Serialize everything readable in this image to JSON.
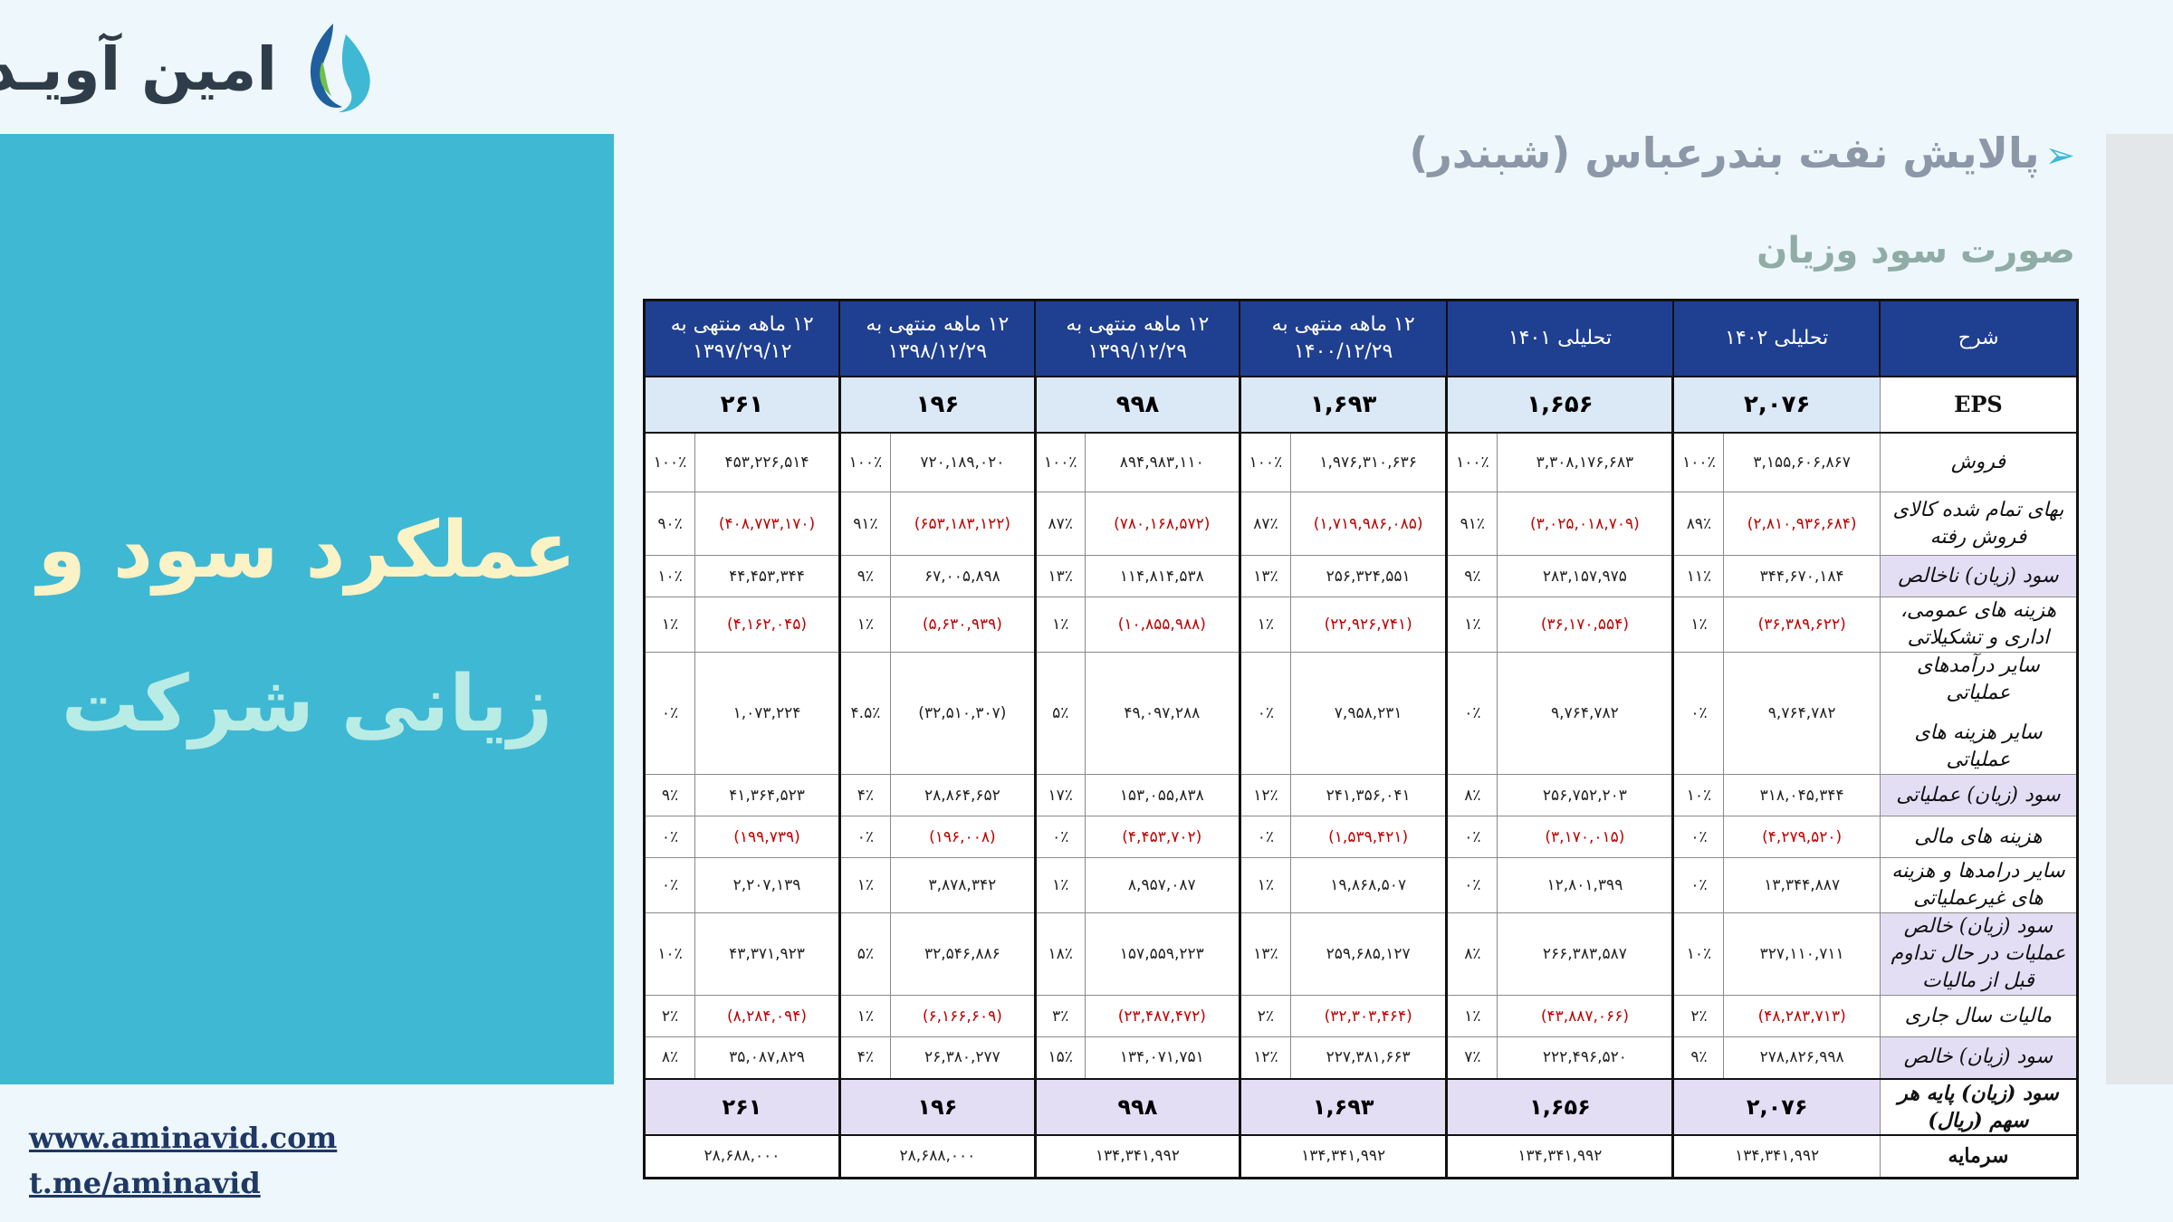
{
  "logo": {
    "text": "امین آویـد",
    "icon": "water-drops-logo-icon"
  },
  "side_panel": {
    "line1": "عملکرد سود و",
    "line2": "زیانی شرکت"
  },
  "links": {
    "website": "www.aminavid.com",
    "telegram": "t.me/aminavid"
  },
  "title": "پالایش نفت بندرعباس (شبندر)",
  "subtitle": "صورت سود وزیان",
  "colors": {
    "header_bg": "#1f3f91",
    "panel_bg": "#3fb8d3",
    "negative": "#c00000",
    "highlight": "#e4def5",
    "eps_bg": "#dbe8f5"
  },
  "table": {
    "headers": {
      "desc": "شرح",
      "c1": "تحلیلی ۱۴۰۲",
      "c2": "تحلیلی ۱۴۰۱",
      "c3": "۱۲ ماهه منتهی به ۱۴۰۰/۱۲/۲۹",
      "c4": "۱۲ ماهه منتهی به ۱۳۹۹/۱۲/۲۹",
      "c5": "۱۲ ماهه منتهی به ۱۳۹۸/۱۲/۲۹",
      "c6": "۱۲ ماهه منتهی به ۱۳۹۷/۲۹/۱۲"
    },
    "eps": {
      "label": "EPS",
      "values": [
        "۲,۰۷۶",
        "۱,۶۵۶",
        "۱,۶۹۳",
        "۹۹۸",
        "۱۹۶",
        "۲۶۱"
      ]
    },
    "rows": [
      {
        "label": "فروش",
        "cells": [
          [
            "۳,۱۵۵,۶۰۶,۸۶۷",
            "۱۰۰٪"
          ],
          [
            "۳,۳۰۸,۱۷۶,۶۸۳",
            "۱۰۰٪"
          ],
          [
            "۱,۹۷۶,۳۱۰,۶۳۶",
            "۱۰۰٪"
          ],
          [
            "۸۹۴,۹۸۳,۱۱۰",
            "۱۰۰٪"
          ],
          [
            "۷۲۰,۱۸۹,۰۲۰",
            "۱۰۰٪"
          ],
          [
            "۴۵۳,۲۲۶,۵۱۴",
            "۱۰۰٪"
          ]
        ],
        "neg": false,
        "hl": false
      },
      {
        "label": "بهای تمام شده کالای فروش رفته",
        "cells": [
          [
            "(۲,۸۱۰,۹۳۶,۶۸۴)",
            "۸۹٪"
          ],
          [
            "(۳,۰۲۵,۰۱۸,۷۰۹)",
            "۹۱٪"
          ],
          [
            "(۱,۷۱۹,۹۸۶,۰۸۵)",
            "۸۷٪"
          ],
          [
            "(۷۸۰,۱۶۸,۵۷۲)",
            "۸۷٪"
          ],
          [
            "(۶۵۳,۱۸۳,۱۲۲)",
            "۹۱٪"
          ],
          [
            "(۴۰۸,۷۷۳,۱۷۰)",
            "۹۰٪"
          ]
        ],
        "neg": true,
        "hl": false
      },
      {
        "label": "سود (زیان) ناخالص",
        "cells": [
          [
            "۳۴۴,۶۷۰,۱۸۴",
            "۱۱٪"
          ],
          [
            "۲۸۳,۱۵۷,۹۷۵",
            "۹٪"
          ],
          [
            "۲۵۶,۳۲۴,۵۵۱",
            "۱۳٪"
          ],
          [
            "۱۱۴,۸۱۴,۵۳۸",
            "۱۳٪"
          ],
          [
            "۶۷,۰۰۵,۸۹۸",
            "۹٪"
          ],
          [
            "۴۴,۴۵۳,۳۴۴",
            "۱۰٪"
          ]
        ],
        "neg": false,
        "hl": true
      },
      {
        "label": "هزینه های عمومی، اداری و تشکیلاتی",
        "cells": [
          [
            "(۳۶,۳۸۹,۶۲۲)",
            "۱٪"
          ],
          [
            "(۳۶,۱۷۰,۵۵۴)",
            "۱٪"
          ],
          [
            "(۲۲,۹۲۶,۷۴۱)",
            "۱٪"
          ],
          [
            "(۱۰,۸۵۵,۹۸۸)",
            "۱٪"
          ],
          [
            "(۵,۶۳۰,۹۳۹)",
            "۱٪"
          ],
          [
            "(۴,۱۶۲,۰۴۵)",
            "۱٪"
          ]
        ],
        "neg": true,
        "hl": false
      },
      {
        "label": "سایر درآمدهای عملیاتی",
        "label2": "سایر هزینه های عملیاتی",
        "cells": [
          [
            "۹,۷۶۴,۷۸۲",
            "۰٪"
          ],
          [
            "۹,۷۶۴,۷۸۲",
            "۰٪"
          ],
          [
            "۷,۹۵۸,۲۳۱",
            "۰٪"
          ],
          [
            "۴۹,۰۹۷,۲۸۸",
            "۵٪"
          ],
          [
            "(۳۲,۵۱۰,۳۰۷)",
            "۴.۵٪"
          ],
          [
            "۱,۰۷۳,۲۲۴",
            "۰٪"
          ]
        ],
        "neg": false,
        "hl": false
      },
      {
        "label": "سود (زیان) عملیاتی",
        "cells": [
          [
            "۳۱۸,۰۴۵,۳۴۴",
            "۱۰٪"
          ],
          [
            "۲۵۶,۷۵۲,۲۰۳",
            "۸٪"
          ],
          [
            "۲۴۱,۳۵۶,۰۴۱",
            "۱۲٪"
          ],
          [
            "۱۵۳,۰۵۵,۸۳۸",
            "۱۷٪"
          ],
          [
            "۲۸,۸۶۴,۶۵۲",
            "۴٪"
          ],
          [
            "۴۱,۳۶۴,۵۲۳",
            "۹٪"
          ]
        ],
        "neg": false,
        "hl": true
      },
      {
        "label": "هزینه های مالی",
        "cells": [
          [
            "(۴,۲۷۹,۵۲۰)",
            "۰٪"
          ],
          [
            "(۳,۱۷۰,۰۱۵)",
            "۰٪"
          ],
          [
            "(۱,۵۳۹,۴۲۱)",
            "۰٪"
          ],
          [
            "(۴,۴۵۳,۷۰۲)",
            "۰٪"
          ],
          [
            "(۱۹۶,۰۰۸)",
            "۰٪"
          ],
          [
            "(۱۹۹,۷۳۹)",
            "۰٪"
          ]
        ],
        "neg": true,
        "hl": false
      },
      {
        "label": "سایر درامدها و هزینه های غیرعملیاتی",
        "cells": [
          [
            "۱۳,۳۴۴,۸۸۷",
            "۰٪"
          ],
          [
            "۱۲,۸۰۱,۳۹۹",
            "۰٪"
          ],
          [
            "۱۹,۸۶۸,۵۰۷",
            "۱٪"
          ],
          [
            "۸,۹۵۷,۰۸۷",
            "۱٪"
          ],
          [
            "۳,۸۷۸,۳۴۲",
            "۱٪"
          ],
          [
            "۲,۲۰۷,۱۳۹",
            "۰٪"
          ]
        ],
        "neg": false,
        "hl": false
      },
      {
        "label": "سود (زیان) خالص عملیات در حال تداوم قبل از مالیات",
        "cells": [
          [
            "۳۲۷,۱۱۰,۷۱۱",
            "۱۰٪"
          ],
          [
            "۲۶۶,۳۸۳,۵۸۷",
            "۸٪"
          ],
          [
            "۲۵۹,۶۸۵,۱۲۷",
            "۱۳٪"
          ],
          [
            "۱۵۷,۵۵۹,۲۲۳",
            "۱۸٪"
          ],
          [
            "۳۲,۵۴۶,۸۸۶",
            "۵٪"
          ],
          [
            "۴۳,۳۷۱,۹۲۳",
            "۱۰٪"
          ]
        ],
        "neg": false,
        "hl": true
      },
      {
        "label": "مالیات سال جاری",
        "cells": [
          [
            "(۴۸,۲۸۳,۷۱۳)",
            "۲٪"
          ],
          [
            "(۴۳,۸۸۷,۰۶۶)",
            "۱٪"
          ],
          [
            "(۳۲,۳۰۳,۴۶۴)",
            "۲٪"
          ],
          [
            "(۲۳,۴۸۷,۴۷۲)",
            "۳٪"
          ],
          [
            "(۶,۱۶۶,۶۰۹)",
            "۱٪"
          ],
          [
            "(۸,۲۸۴,۰۹۴)",
            "۲٪"
          ]
        ],
        "neg": true,
        "hl": false
      },
      {
        "label": "سود (زیان) خالص",
        "cells": [
          [
            "۲۷۸,۸۲۶,۹۹۸",
            "۹٪"
          ],
          [
            "۲۲۲,۴۹۶,۵۲۰",
            "۷٪"
          ],
          [
            "۲۲۷,۳۸۱,۶۶۳",
            "۱۲٪"
          ],
          [
            "۱۳۴,۰۷۱,۷۵۱",
            "۱۵٪"
          ],
          [
            "۲۶,۳۸۰,۲۷۷",
            "۴٪"
          ],
          [
            "۳۵,۰۸۷,۸۲۹",
            "۸٪"
          ]
        ],
        "neg": false,
        "hl": true
      }
    ],
    "eps_row": {
      "label": "سود (زیان)  پایه هر سهم (ریال)",
      "values": [
        "۲,۰۷۶",
        "۱,۶۵۶",
        "۱,۶۹۳",
        "۹۹۸",
        "۱۹۶",
        "۲۶۱"
      ]
    },
    "capital": {
      "label": "سرمایه",
      "values": [
        "۱۳۴,۳۴۱,۹۹۲",
        "۱۳۴,۳۴۱,۹۹۲",
        "۱۳۴,۳۴۱,۹۹۲",
        "۱۳۴,۳۴۱,۹۹۲",
        "۲۸,۶۸۸,۰۰۰",
        "۲۸,۶۸۸,۰۰۰"
      ]
    }
  }
}
